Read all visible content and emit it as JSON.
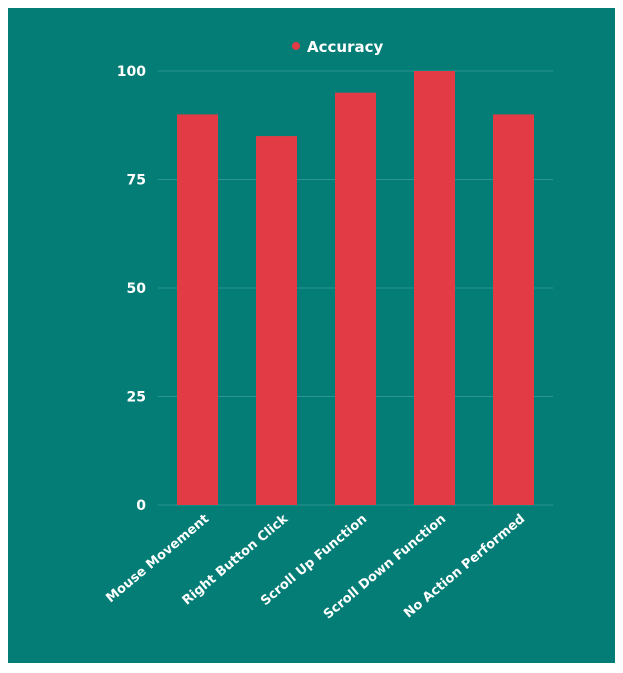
{
  "colors": {
    "background": "#037d75",
    "bar": "#e23b45",
    "gridline": "#2e958e",
    "text": "#ffffff"
  },
  "chart_data": {
    "type": "bar",
    "title": "",
    "xlabel": "",
    "ylabel": "",
    "categories": [
      "Mouse Movement",
      "Right Button Click",
      "Scroll Up Function",
      "Scroll Down Function",
      "No Action Performed"
    ],
    "series": [
      {
        "name": "Accuracy",
        "values": [
          90,
          85,
          95,
          100,
          90
        ]
      }
    ],
    "ylim": [
      0,
      100
    ],
    "yticks": [
      "0",
      "25",
      "50",
      "75",
      "100"
    ],
    "grid": true,
    "legend_position": "top"
  }
}
